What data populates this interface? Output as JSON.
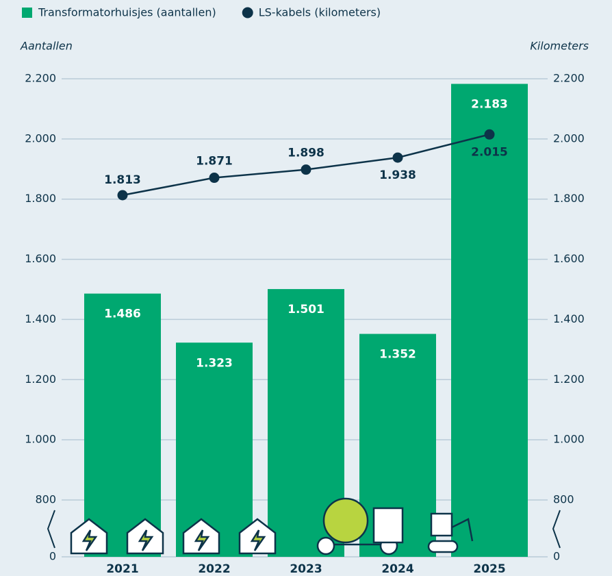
{
  "chart_data": {
    "type": "bar",
    "y_label": "Aantallen",
    "y2_label": "Kilometers",
    "categories": [
      "2021",
      "2022",
      "2023",
      "2024",
      "2025"
    ],
    "series": [
      {
        "name": "Transformatorhuisjes (aantallen)",
        "type": "bar",
        "color": "#00a870",
        "values": [
          1486,
          1323,
          1501,
          1352,
          2183
        ],
        "value_labels": [
          "1.486",
          "1.323",
          "1.501",
          "1.352",
          "2.183"
        ]
      },
      {
        "name": "LS-kabels (kilometers)",
        "type": "line",
        "axis": "y2",
        "color": "#0d3349",
        "values": [
          1813,
          1871,
          1898,
          1938,
          2015
        ],
        "value_labels": [
          "1.813",
          "1.871",
          "1.898",
          "1.938",
          "2.015"
        ]
      }
    ],
    "ylim": [
      0,
      2200
    ],
    "yticks": [
      0,
      800,
      {
        "value": 1000,
        "label": "1.000"
      },
      {
        "value": 1200,
        "label": "1.200"
      },
      {
        "value": 1400,
        "label": "1.400"
      },
      {
        "value": 1600,
        "label": "1.600"
      },
      {
        "value": 1800,
        "label": "1.800"
      },
      {
        "value": 2000,
        "label": "2.000"
      },
      {
        "value": 2200,
        "label": "2.200"
      }
    ],
    "y2lim": [
      0,
      2200
    ],
    "y2ticks": [
      0,
      800,
      {
        "value": 1000,
        "label": "1.000"
      },
      {
        "value": 1200,
        "label": "1.200"
      },
      {
        "value": 1400,
        "label": "1.400"
      },
      {
        "value": 1600,
        "label": "1.600"
      },
      {
        "value": 1800,
        "label": "1.800"
      },
      {
        "value": 2000,
        "label": "2.000"
      },
      {
        "value": 2200,
        "label": "2.200"
      }
    ],
    "grid": true
  }
}
